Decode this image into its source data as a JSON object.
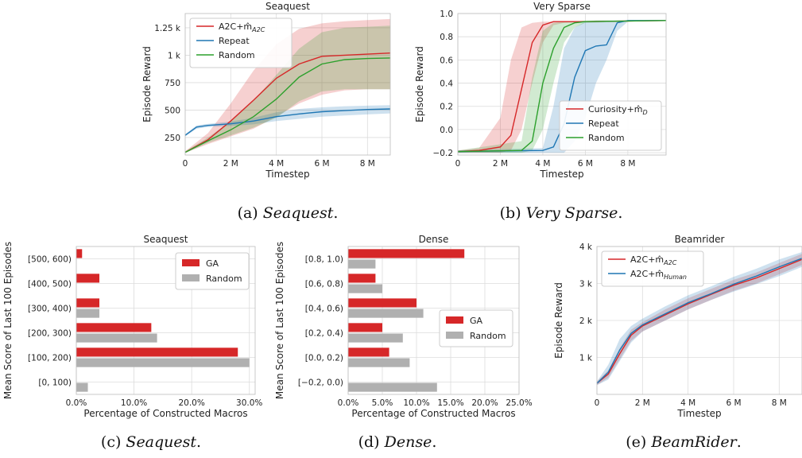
{
  "captions": [
    {
      "label": "(a) ",
      "italic": "Seaquest",
      "tail": "."
    },
    {
      "label": "(b) ",
      "italic": "Very Sparse",
      "tail": "."
    },
    {
      "label": "(c) ",
      "italic": "Seaquest",
      "tail": "."
    },
    {
      "label": "(d) ",
      "italic": "Dense",
      "tail": "."
    },
    {
      "label": "(e) ",
      "italic": "BeamRider",
      "tail": "."
    }
  ],
  "colors": {
    "red": "#d62728",
    "blue": "#1f77b4",
    "green": "#2ca02c",
    "gray": "#b0b0b0"
  },
  "chart_data": [
    {
      "id": "a",
      "type": "line",
      "title": "Seaquest",
      "xlabel": "Timestep",
      "ylabel": "Episode Reward",
      "xlim": [
        0,
        9000000
      ],
      "ylim": [
        90,
        1380
      ],
      "xticks": [
        [
          0,
          "0"
        ],
        [
          2000000,
          "2 M"
        ],
        [
          4000000,
          "4 M"
        ],
        [
          6000000,
          "6 M"
        ],
        [
          8000000,
          "8 M"
        ]
      ],
      "yticks": [
        [
          250,
          "250"
        ],
        [
          500,
          "500"
        ],
        [
          750,
          "750"
        ],
        [
          1000,
          "1 k"
        ],
        [
          1250,
          "1.25 k"
        ]
      ],
      "legend_pos": "top-left",
      "series": [
        {
          "name": "A2C+m̂_A2C",
          "color": "red",
          "x": [
            0,
            1000000,
            2000000,
            3000000,
            4000000,
            5000000,
            6000000,
            7000000,
            8000000,
            9000000
          ],
          "y": [
            115,
            230,
            400,
            590,
            790,
            920,
            990,
            1000,
            1010,
            1020
          ],
          "lo": [
            110,
            190,
            260,
            330,
            440,
            560,
            640,
            680,
            690,
            690
          ],
          "hi": [
            125,
            290,
            560,
            860,
            1100,
            1240,
            1290,
            1310,
            1320,
            1330
          ]
        },
        {
          "name": "Repeat",
          "color": "blue",
          "x": [
            0,
            500000,
            1000000,
            2000000,
            3000000,
            4000000,
            5000000,
            6000000,
            7000000,
            8000000,
            9000000
          ],
          "y": [
            270,
            345,
            360,
            375,
            400,
            440,
            465,
            485,
            495,
            505,
            510
          ],
          "lo": [
            260,
            330,
            345,
            355,
            370,
            400,
            420,
            440,
            450,
            460,
            470
          ],
          "hi": [
            280,
            360,
            375,
            395,
            430,
            480,
            510,
            525,
            535,
            540,
            545
          ]
        },
        {
          "name": "Random",
          "color": "green",
          "x": [
            0,
            1000000,
            2000000,
            3000000,
            4000000,
            5000000,
            6000000,
            7000000,
            8000000,
            9000000
          ],
          "y": [
            115,
            220,
            320,
            440,
            600,
            800,
            920,
            960,
            970,
            975
          ],
          "lo": [
            110,
            200,
            270,
            340,
            430,
            580,
            670,
            690,
            690,
            690
          ],
          "hi": [
            125,
            250,
            400,
            590,
            820,
            1060,
            1210,
            1250,
            1260,
            1270
          ]
        }
      ]
    },
    {
      "id": "b",
      "type": "line",
      "title": "Very Sparse",
      "xlabel": "Timestep",
      "ylabel": "Episode Reward",
      "xlim": [
        0,
        9800000
      ],
      "ylim": [
        -0.22,
        1.0
      ],
      "xticks": [
        [
          0,
          "0"
        ],
        [
          2000000,
          "2 M"
        ],
        [
          4000000,
          "4 M"
        ],
        [
          6000000,
          "6 M"
        ],
        [
          8000000,
          "8 M"
        ]
      ],
      "yticks": [
        [
          -0.2,
          "−0.2"
        ],
        [
          0,
          "0.0"
        ],
        [
          0.2,
          "0.2"
        ],
        [
          0.4,
          "0.4"
        ],
        [
          0.6,
          "0.6"
        ],
        [
          0.8,
          "0.8"
        ],
        [
          1.0,
          "1.0"
        ]
      ],
      "legend_pos": "bottom-right",
      "series": [
        {
          "name": "Curiosity+m̂_D",
          "color": "red",
          "x": [
            0,
            1000000,
            2000000,
            2500000,
            3000000,
            3500000,
            4000000,
            4500000,
            5000000,
            6000000,
            9800000
          ],
          "y": [
            -0.19,
            -0.18,
            -0.15,
            -0.05,
            0.35,
            0.75,
            0.9,
            0.93,
            0.93,
            0.93,
            0.94
          ],
          "lo": [
            -0.2,
            -0.2,
            -0.2,
            -0.18,
            0.0,
            0.4,
            0.75,
            0.9,
            0.92,
            0.93,
            0.94
          ],
          "hi": [
            -0.18,
            -0.16,
            0.1,
            0.6,
            0.88,
            0.92,
            0.93,
            0.93,
            0.93,
            0.93,
            0.94
          ]
        },
        {
          "name": "Repeat",
          "color": "blue",
          "x": [
            0,
            4000000,
            4500000,
            5000000,
            5500000,
            6000000,
            6500000,
            7000000,
            7500000,
            8000000,
            9800000
          ],
          "y": [
            -0.19,
            -0.18,
            -0.15,
            0.05,
            0.45,
            0.68,
            0.72,
            0.73,
            0.92,
            0.94,
            0.94
          ],
          "lo": [
            -0.2,
            -0.2,
            -0.2,
            -0.2,
            -0.1,
            0.1,
            0.4,
            0.6,
            0.85,
            0.93,
            0.94
          ],
          "hi": [
            -0.18,
            -0.16,
            0.2,
            0.7,
            0.88,
            0.93,
            0.94,
            0.94,
            0.94,
            0.94,
            0.94
          ]
        },
        {
          "name": "Random",
          "color": "green",
          "x": [
            0,
            3000000,
            3500000,
            4000000,
            4500000,
            5000000,
            5500000,
            6000000,
            9800000
          ],
          "y": [
            -0.19,
            -0.18,
            -0.1,
            0.4,
            0.7,
            0.88,
            0.92,
            0.93,
            0.94
          ],
          "lo": [
            -0.2,
            -0.2,
            -0.18,
            0.0,
            0.4,
            0.75,
            0.88,
            0.92,
            0.94
          ],
          "hi": [
            -0.18,
            -0.1,
            0.45,
            0.85,
            0.92,
            0.93,
            0.93,
            0.94,
            0.94
          ]
        }
      ]
    },
    {
      "id": "c",
      "type": "bar",
      "orientation": "horizontal",
      "title": "Seaquest",
      "xlabel": "Percentage of Constructed Macros",
      "ylabel": "Mean Score of Last 100 Episodes",
      "xlim": [
        0,
        31
      ],
      "xticks": [
        [
          0,
          "0.0%"
        ],
        [
          10,
          "10.0%"
        ],
        [
          20,
          "20.0%"
        ],
        [
          30,
          "30.0%"
        ]
      ],
      "categories": [
        "[500, 600)",
        "[400, 500)",
        "[300, 400)",
        "[200, 300)",
        "[100, 200)",
        "[0, 100)"
      ],
      "legend_pos": "top-right",
      "series": [
        {
          "name": "GA",
          "color": "red",
          "values": [
            1,
            4,
            4,
            13,
            28,
            0
          ]
        },
        {
          "name": "Random",
          "color": "gray",
          "values": [
            0,
            0,
            4,
            14,
            30,
            2
          ]
        }
      ]
    },
    {
      "id": "d",
      "type": "bar",
      "orientation": "horizontal",
      "title": "Dense",
      "xlabel": "Percentage of Constructed Macros",
      "ylabel": "Mean Score of Last 100 Episodes",
      "xlim": [
        0,
        25
      ],
      "xticks": [
        [
          0,
          "0.0%"
        ],
        [
          5,
          "5.0%"
        ],
        [
          10,
          "10.0%"
        ],
        [
          15,
          "15.0%"
        ],
        [
          20,
          "20.0%"
        ],
        [
          25,
          "25.0%"
        ]
      ],
      "categories": [
        "[0.8, 1.0)",
        "[0.6, 0.8)",
        "[0.4, 0.6)",
        "[0.2, 0.4)",
        "[0.0, 0.2)",
        "[−0.2, 0.0)"
      ],
      "legend_pos": "center-right",
      "series": [
        {
          "name": "GA",
          "color": "red",
          "values": [
            17,
            4,
            10,
            5,
            6,
            0
          ]
        },
        {
          "name": "Random",
          "color": "gray",
          "values": [
            4,
            5,
            11,
            8,
            9,
            13
          ]
        }
      ]
    },
    {
      "id": "e",
      "type": "line",
      "title": "Beamrider",
      "xlabel": "Timestep",
      "ylabel": "Episode Reward",
      "xlim": [
        0,
        9000000
      ],
      "ylim": [
        0,
        4000
      ],
      "xticks": [
        [
          0,
          "0"
        ],
        [
          2000000,
          "2 M"
        ],
        [
          4000000,
          "4 M"
        ],
        [
          6000000,
          "6 M"
        ],
        [
          8000000,
          "8 M"
        ]
      ],
      "yticks": [
        [
          1000,
          "1 k"
        ],
        [
          2000,
          "2 k"
        ],
        [
          3000,
          "3 k"
        ],
        [
          4000,
          "4 k"
        ]
      ],
      "legend_pos": "top-left",
      "series": [
        {
          "name": "A2C+m̂_A2C",
          "color": "red",
          "x": [
            0,
            500000,
            1000000,
            1500000,
            2000000,
            3000000,
            4000000,
            5000000,
            6000000,
            7000000,
            8000000,
            9000000
          ],
          "y": [
            300,
            550,
            1100,
            1600,
            1850,
            2150,
            2450,
            2700,
            2950,
            3150,
            3400,
            3650
          ],
          "lo": [
            250,
            450,
            950,
            1450,
            1700,
            2000,
            2300,
            2550,
            2800,
            3000,
            3250,
            3500
          ],
          "hi": [
            350,
            650,
            1250,
            1750,
            1950,
            2300,
            2600,
            2850,
            3100,
            3300,
            3550,
            3800
          ]
        },
        {
          "name": "A2C+m̂_Human",
          "color": "blue",
          "x": [
            0,
            500000,
            1000000,
            1500000,
            2000000,
            3000000,
            4000000,
            5000000,
            6000000,
            7000000,
            8000000,
            9000000
          ],
          "y": [
            300,
            600,
            1200,
            1650,
            1880,
            2180,
            2480,
            2720,
            2980,
            3200,
            3450,
            3680
          ],
          "lo": [
            250,
            400,
            900,
            1400,
            1700,
            2000,
            2300,
            2550,
            2780,
            2980,
            3200,
            3450
          ],
          "hi": [
            350,
            800,
            1500,
            1850,
            2050,
            2380,
            2680,
            2920,
            3180,
            3400,
            3650,
            3850
          ]
        }
      ]
    }
  ]
}
